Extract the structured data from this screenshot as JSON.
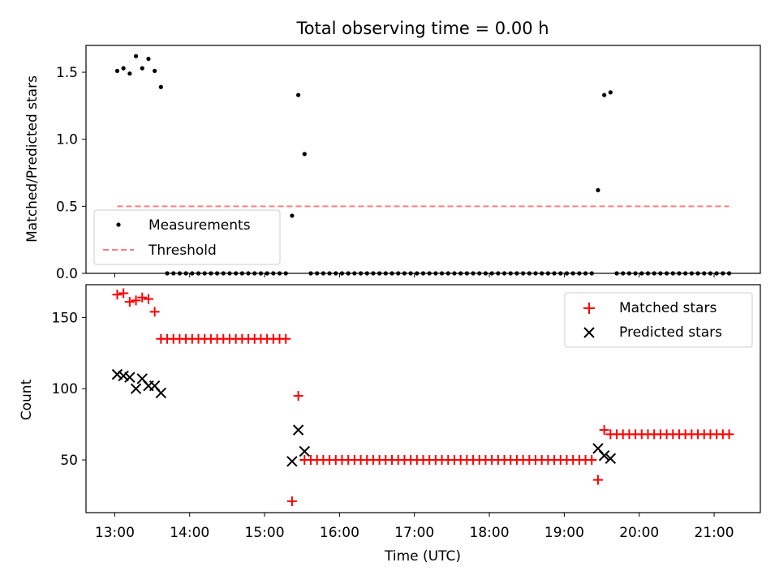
{
  "chart_data": [
    {
      "type": "scatter",
      "title": "Total observing time = 0.00 h",
      "ylabel": "Matched/Predicted stars",
      "xlabel": "",
      "xlim": [
        "12:37",
        "21:37"
      ],
      "ylim": [
        0,
        1.7
      ],
      "yticks": [
        "0.0",
        "0.5",
        "1.0",
        "1.5"
      ],
      "legend_position": "bottom-left",
      "series": [
        {
          "name": "Measurements",
          "marker": "dot",
          "color": "#000000",
          "points": [
            [
              "13:02",
              1.51
            ],
            [
              "13:07",
              1.53
            ],
            [
              "13:12",
              1.49
            ],
            [
              "13:17",
              1.62
            ],
            [
              "13:22",
              1.53
            ],
            [
              "13:27",
              1.6
            ],
            [
              "13:32",
              1.51
            ],
            [
              "13:37",
              1.39
            ],
            [
              "13:42",
              0
            ],
            [
              "13:47",
              0
            ],
            [
              "13:52",
              0
            ],
            [
              "13:57",
              0
            ],
            [
              "14:02",
              0
            ],
            [
              "14:07",
              0
            ],
            [
              "14:12",
              0
            ],
            [
              "14:17",
              0
            ],
            [
              "14:22",
              0
            ],
            [
              "14:27",
              0
            ],
            [
              "14:32",
              0
            ],
            [
              "14:37",
              0
            ],
            [
              "14:42",
              0
            ],
            [
              "14:47",
              0
            ],
            [
              "14:52",
              0
            ],
            [
              "14:57",
              0
            ],
            [
              "15:02",
              0
            ],
            [
              "15:07",
              0
            ],
            [
              "15:12",
              0
            ],
            [
              "15:17",
              0
            ],
            [
              "15:22",
              0.43
            ],
            [
              "15:27",
              1.33
            ],
            [
              "15:32",
              0.89
            ],
            [
              "15:37",
              0
            ],
            [
              "15:42",
              0
            ],
            [
              "15:47",
              0
            ],
            [
              "15:52",
              0
            ],
            [
              "15:57",
              0
            ],
            [
              "16:02",
              0
            ],
            [
              "16:07",
              0
            ],
            [
              "16:12",
              0
            ],
            [
              "16:17",
              0
            ],
            [
              "16:22",
              0
            ],
            [
              "16:27",
              0
            ],
            [
              "16:32",
              0
            ],
            [
              "16:37",
              0
            ],
            [
              "16:42",
              0
            ],
            [
              "16:47",
              0
            ],
            [
              "16:52",
              0
            ],
            [
              "16:57",
              0
            ],
            [
              "17:02",
              0
            ],
            [
              "17:07",
              0
            ],
            [
              "17:12",
              0
            ],
            [
              "17:17",
              0
            ],
            [
              "17:22",
              0
            ],
            [
              "17:27",
              0
            ],
            [
              "17:32",
              0
            ],
            [
              "17:37",
              0
            ],
            [
              "17:42",
              0
            ],
            [
              "17:47",
              0
            ],
            [
              "17:52",
              0
            ],
            [
              "17:57",
              0
            ],
            [
              "18:02",
              0
            ],
            [
              "18:07",
              0
            ],
            [
              "18:12",
              0
            ],
            [
              "18:17",
              0
            ],
            [
              "18:22",
              0
            ],
            [
              "18:27",
              0
            ],
            [
              "18:32",
              0
            ],
            [
              "18:37",
              0
            ],
            [
              "18:42",
              0
            ],
            [
              "18:47",
              0
            ],
            [
              "18:52",
              0
            ],
            [
              "18:57",
              0
            ],
            [
              "19:02",
              0
            ],
            [
              "19:07",
              0
            ],
            [
              "19:12",
              0
            ],
            [
              "19:17",
              0
            ],
            [
              "19:22",
              0
            ],
            [
              "19:27",
              0.62
            ],
            [
              "19:32",
              1.33
            ],
            [
              "19:37",
              1.35
            ],
            [
              "19:42",
              0
            ],
            [
              "19:47",
              0
            ],
            [
              "19:52",
              0
            ],
            [
              "19:57",
              0
            ],
            [
              "20:02",
              0
            ],
            [
              "20:07",
              0
            ],
            [
              "20:12",
              0
            ],
            [
              "20:17",
              0
            ],
            [
              "20:22",
              0
            ],
            [
              "20:27",
              0
            ],
            [
              "20:32",
              0
            ],
            [
              "20:37",
              0
            ],
            [
              "20:42",
              0
            ],
            [
              "20:47",
              0
            ],
            [
              "20:52",
              0
            ],
            [
              "20:57",
              0
            ],
            [
              "21:02",
              0
            ],
            [
              "21:07",
              0
            ],
            [
              "21:12",
              0
            ]
          ]
        },
        {
          "name": "Threshold",
          "marker": "dashed-line",
          "color": "#ff7f7f",
          "points": [
            [
              "13:02",
              0.5
            ],
            [
              "21:12",
              0.5
            ]
          ]
        }
      ]
    },
    {
      "type": "scatter",
      "title": "",
      "xlabel": "Time (UTC)",
      "ylabel": "Count",
      "xlim": [
        "12:37",
        "21:37"
      ],
      "ylim": [
        13,
        173
      ],
      "yticks": [
        "50",
        "100",
        "150"
      ],
      "xticks": [
        "13:00",
        "14:00",
        "15:00",
        "16:00",
        "17:00",
        "18:00",
        "19:00",
        "20:00",
        "21:00"
      ],
      "legend_position": "top-right",
      "series": [
        {
          "name": "Matched stars",
          "marker": "plus",
          "color": "#ff0000",
          "points": [
            [
              "13:02",
              166
            ],
            [
              "13:07",
              167
            ],
            [
              "13:12",
              161
            ],
            [
              "13:17",
              162
            ],
            [
              "13:22",
              164
            ],
            [
              "13:27",
              163
            ],
            [
              "13:32",
              154
            ],
            [
              "13:37",
              135
            ],
            [
              "13:42",
              135
            ],
            [
              "13:47",
              135
            ],
            [
              "13:52",
              135
            ],
            [
              "13:57",
              135
            ],
            [
              "14:02",
              135
            ],
            [
              "14:07",
              135
            ],
            [
              "14:12",
              135
            ],
            [
              "14:17",
              135
            ],
            [
              "14:22",
              135
            ],
            [
              "14:27",
              135
            ],
            [
              "14:32",
              135
            ],
            [
              "14:37",
              135
            ],
            [
              "14:42",
              135
            ],
            [
              "14:47",
              135
            ],
            [
              "14:52",
              135
            ],
            [
              "14:57",
              135
            ],
            [
              "15:02",
              135
            ],
            [
              "15:07",
              135
            ],
            [
              "15:12",
              135
            ],
            [
              "15:17",
              135
            ],
            [
              "15:22",
              21
            ],
            [
              "15:27",
              95
            ],
            [
              "15:32",
              50
            ],
            [
              "15:37",
              50
            ],
            [
              "15:42",
              50
            ],
            [
              "15:47",
              50
            ],
            [
              "15:52",
              50
            ],
            [
              "15:57",
              50
            ],
            [
              "16:02",
              50
            ],
            [
              "16:07",
              50
            ],
            [
              "16:12",
              50
            ],
            [
              "16:17",
              50
            ],
            [
              "16:22",
              50
            ],
            [
              "16:27",
              50
            ],
            [
              "16:32",
              50
            ],
            [
              "16:37",
              50
            ],
            [
              "16:42",
              50
            ],
            [
              "16:47",
              50
            ],
            [
              "16:52",
              50
            ],
            [
              "16:57",
              50
            ],
            [
              "17:02",
              50
            ],
            [
              "17:07",
              50
            ],
            [
              "17:12",
              50
            ],
            [
              "17:17",
              50
            ],
            [
              "17:22",
              50
            ],
            [
              "17:27",
              50
            ],
            [
              "17:32",
              50
            ],
            [
              "17:37",
              50
            ],
            [
              "17:42",
              50
            ],
            [
              "17:47",
              50
            ],
            [
              "17:52",
              50
            ],
            [
              "17:57",
              50
            ],
            [
              "18:02",
              50
            ],
            [
              "18:07",
              50
            ],
            [
              "18:12",
              50
            ],
            [
              "18:17",
              50
            ],
            [
              "18:22",
              50
            ],
            [
              "18:27",
              50
            ],
            [
              "18:32",
              50
            ],
            [
              "18:37",
              50
            ],
            [
              "18:42",
              50
            ],
            [
              "18:47",
              50
            ],
            [
              "18:52",
              50
            ],
            [
              "18:57",
              50
            ],
            [
              "19:02",
              50
            ],
            [
              "19:07",
              50
            ],
            [
              "19:12",
              50
            ],
            [
              "19:17",
              50
            ],
            [
              "19:22",
              50
            ],
            [
              "19:27",
              36
            ],
            [
              "19:32",
              71
            ],
            [
              "19:37",
              68
            ],
            [
              "19:42",
              68
            ],
            [
              "19:47",
              68
            ],
            [
              "19:52",
              68
            ],
            [
              "19:57",
              68
            ],
            [
              "20:02",
              68
            ],
            [
              "20:07",
              68
            ],
            [
              "20:12",
              68
            ],
            [
              "20:17",
              68
            ],
            [
              "20:22",
              68
            ],
            [
              "20:27",
              68
            ],
            [
              "20:32",
              68
            ],
            [
              "20:37",
              68
            ],
            [
              "20:42",
              68
            ],
            [
              "20:47",
              68
            ],
            [
              "20:52",
              68
            ],
            [
              "20:57",
              68
            ],
            [
              "21:02",
              68
            ],
            [
              "21:07",
              68
            ],
            [
              "21:12",
              68
            ]
          ]
        },
        {
          "name": "Predicted stars",
          "marker": "x",
          "color": "#000000",
          "points": [
            [
              "13:02",
              110
            ],
            [
              "13:07",
              109
            ],
            [
              "13:12",
              108
            ],
            [
              "13:17",
              100
            ],
            [
              "13:22",
              107
            ],
            [
              "13:27",
              102
            ],
            [
              "13:32",
              102
            ],
            [
              "13:37",
              97
            ],
            [
              "15:22",
              49
            ],
            [
              "15:27",
              71
            ],
            [
              "15:32",
              56
            ],
            [
              "19:27",
              58
            ],
            [
              "19:32",
              53
            ],
            [
              "19:37",
              51
            ]
          ]
        }
      ]
    }
  ]
}
